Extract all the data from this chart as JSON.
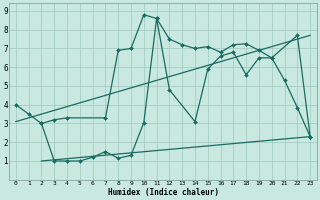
{
  "xlabel": "Humidex (Indice chaleur)",
  "background_color": "#c8e8e0",
  "grid_color": "#a0c8c0",
  "line_color": "#1a6b60",
  "xlim": [
    -0.5,
    23.5
  ],
  "ylim": [
    0,
    9.4
  ],
  "xtick_vals": [
    0,
    1,
    2,
    3,
    4,
    5,
    6,
    7,
    8,
    9,
    10,
    11,
    12,
    13,
    14,
    15,
    16,
    17,
    18,
    19,
    20,
    21,
    22,
    23
  ],
  "xtick_labels": [
    "0",
    "1",
    "2",
    "3",
    "4",
    "5",
    "6",
    "7",
    "8",
    "9",
    "10",
    "11",
    "12",
    "13",
    "14",
    "15",
    "16",
    "17",
    "18",
    "19",
    "20",
    "21",
    "22",
    "23"
  ],
  "ytick_vals": [
    1,
    2,
    3,
    4,
    5,
    6,
    7,
    8,
    9
  ],
  "ytick_labels": [
    "1",
    "2",
    "3",
    "4",
    "5",
    "6",
    "7",
    "8",
    "9"
  ],
  "series": [
    {
      "x": [
        0,
        1,
        2,
        3,
        4,
        7,
        8,
        9,
        10,
        11,
        12,
        13,
        14,
        15,
        16,
        17,
        18,
        19,
        20,
        22,
        23
      ],
      "y": [
        4.0,
        3.5,
        3.0,
        3.2,
        3.3,
        3.3,
        6.9,
        7.0,
        8.8,
        8.6,
        7.5,
        7.2,
        7.0,
        7.1,
        6.8,
        7.2,
        7.25,
        6.9,
        6.5,
        7.7,
        2.3
      ],
      "marker": "D",
      "markersize": 2.0,
      "linewidth": 0.9
    },
    {
      "x": [
        2,
        3,
        4,
        5,
        6,
        7,
        8,
        9,
        10,
        11,
        12,
        14,
        15,
        16,
        17,
        18,
        19,
        20,
        21,
        22,
        23
      ],
      "y": [
        3.0,
        1.0,
        1.0,
        1.0,
        1.2,
        1.5,
        1.15,
        1.3,
        3.05,
        8.6,
        4.8,
        3.1,
        5.9,
        6.6,
        6.8,
        5.6,
        6.5,
        6.5,
        5.3,
        3.85,
        2.3
      ],
      "marker": "D",
      "markersize": 2.0,
      "linewidth": 0.9
    },
    {
      "x": [
        0,
        23
      ],
      "y": [
        3.1,
        7.7
      ],
      "marker": null,
      "markersize": 0,
      "linewidth": 0.9
    },
    {
      "x": [
        2,
        23
      ],
      "y": [
        1.0,
        2.3
      ],
      "marker": null,
      "markersize": 0,
      "linewidth": 0.9
    }
  ]
}
